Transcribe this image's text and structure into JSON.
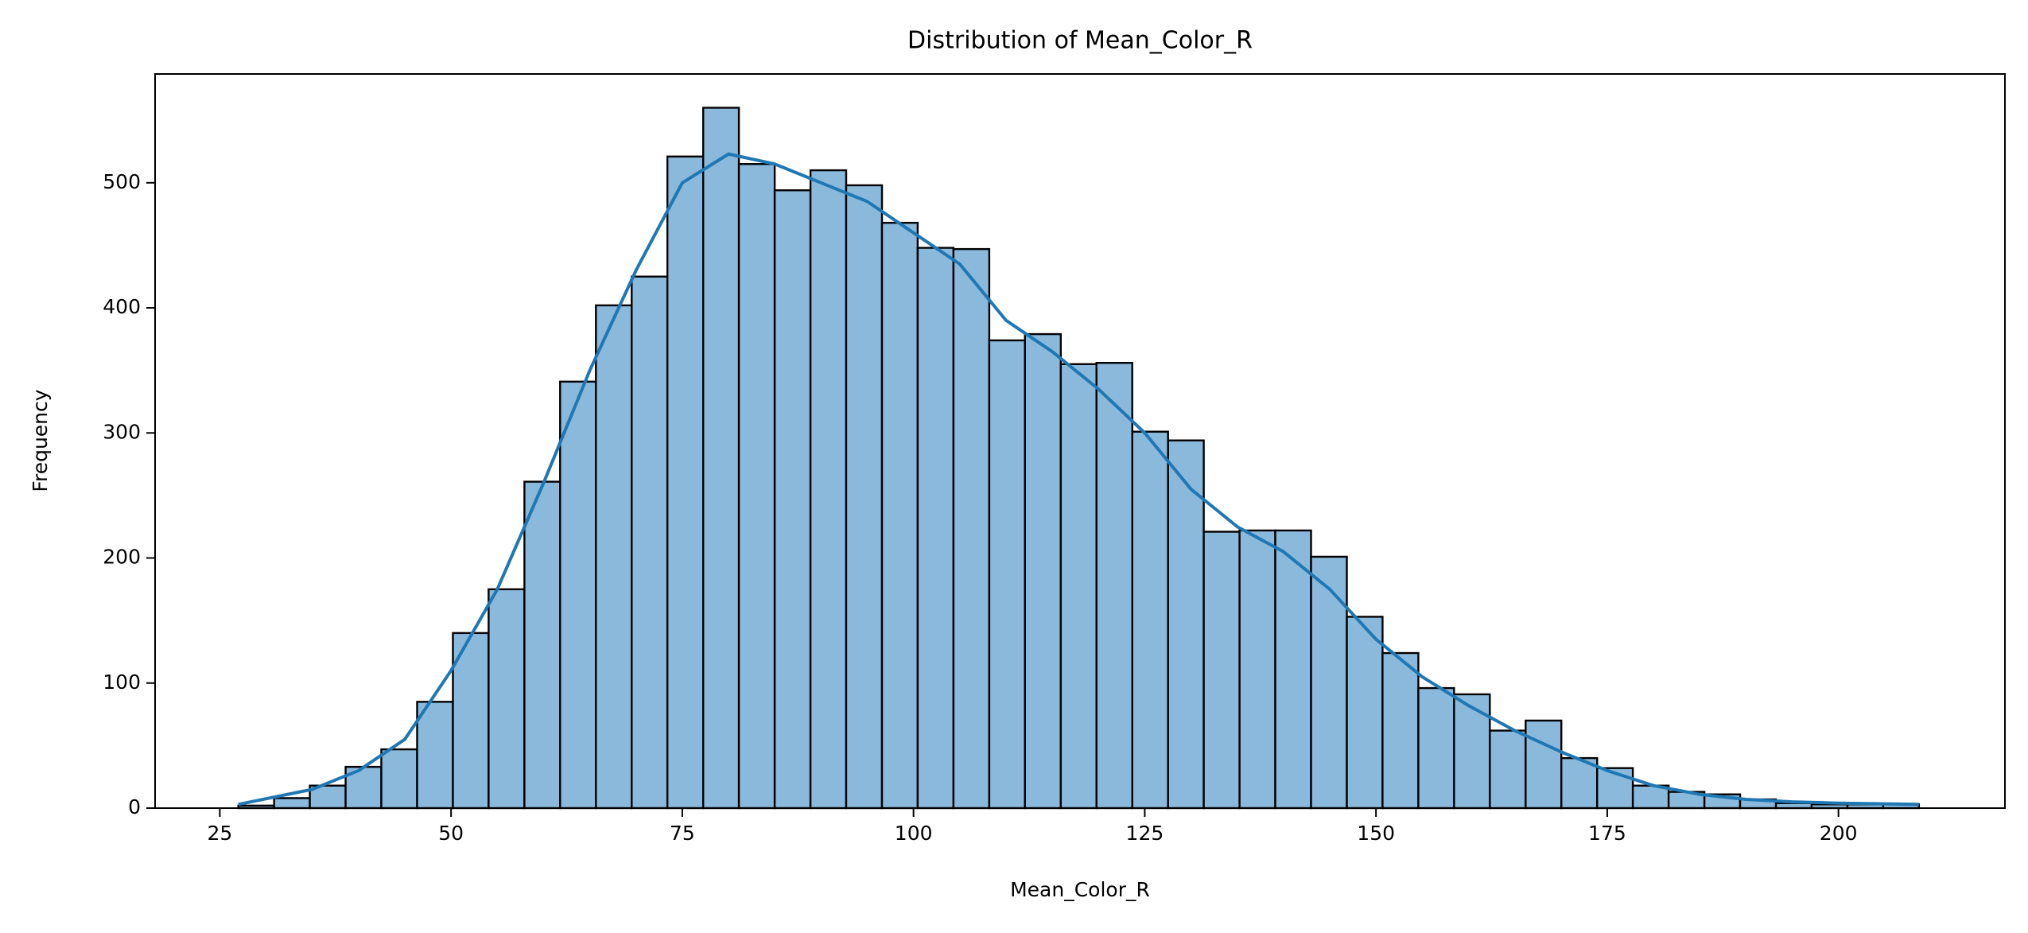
{
  "chart_data": {
    "type": "histogram",
    "title": "Distribution of Mean_Color_R",
    "x_label": "Mean_Color_R",
    "y_label": "Frequency",
    "bins": [
      27.0,
      30.87,
      34.73,
      38.6,
      42.46,
      46.33,
      50.2,
      54.06,
      57.93,
      61.79,
      65.66,
      69.53,
      73.39,
      77.26,
      81.12,
      84.99,
      88.86,
      92.72,
      96.59,
      100.45,
      104.32,
      108.19,
      112.05,
      115.92,
      119.78,
      123.65,
      127.52,
      131.38,
      135.25,
      139.11,
      142.98,
      146.85,
      150.71,
      154.58,
      158.44,
      162.31,
      166.18,
      170.04,
      173.91,
      177.77,
      181.64,
      185.51,
      189.37,
      193.24,
      197.1,
      200.97,
      204.84,
      208.7
    ],
    "values": [
      2,
      8,
      18,
      33,
      47,
      85,
      140,
      175,
      261,
      341,
      402,
      425,
      521,
      560,
      515,
      494,
      510,
      498,
      468,
      448,
      447,
      374,
      379,
      355,
      356,
      301,
      294,
      221,
      222,
      222,
      201,
      153,
      124,
      96,
      91,
      62,
      70,
      40,
      32,
      18,
      13,
      11,
      7,
      4,
      3,
      3,
      3
    ],
    "color": "#8ab9db",
    "edgecolor": "#000000",
    "kde": {
      "color": "#1f77b4",
      "x": [
        27,
        35,
        40,
        45,
        50,
        55,
        60,
        65,
        70,
        75,
        80,
        85,
        90,
        95,
        100,
        105,
        110,
        115,
        120,
        125,
        130,
        135,
        140,
        145,
        150,
        155,
        160,
        165,
        170,
        175,
        180,
        185,
        190,
        195,
        200,
        208.7
      ],
      "values": [
        3,
        15,
        30,
        55,
        110,
        175,
        260,
        350,
        430,
        500,
        523,
        515,
        500,
        485,
        460,
        435,
        390,
        365,
        335,
        300,
        255,
        225,
        205,
        175,
        135,
        105,
        82,
        62,
        45,
        30,
        18,
        11,
        7,
        5,
        4,
        3
      ]
    },
    "xlim": [
      18,
      218
    ],
    "ylim": [
      0,
      587
    ],
    "xticks": [
      25,
      50,
      75,
      100,
      125,
      150,
      175,
      200
    ],
    "yticks": [
      0,
      100,
      200,
      300,
      400,
      500
    ]
  }
}
